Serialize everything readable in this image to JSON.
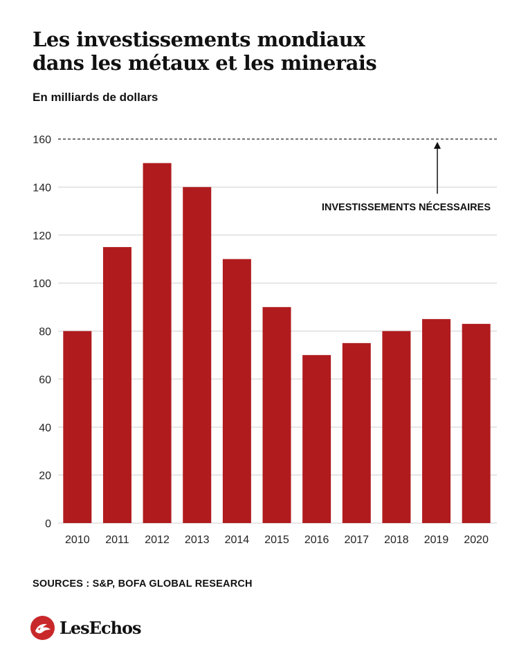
{
  "header": {
    "title_line1": "Les investissements mondiaux",
    "title_line2": "dans les métaux et les minerais",
    "subtitle": "En milliards de dollars"
  },
  "chart_data": {
    "type": "bar",
    "categories": [
      "2010",
      "2011",
      "2012",
      "2013",
      "2014",
      "2015",
      "2016",
      "2017",
      "2018",
      "2019",
      "2020"
    ],
    "values": [
      80,
      115,
      150,
      140,
      110,
      90,
      70,
      75,
      80,
      85,
      83
    ],
    "ylim": [
      0,
      160
    ],
    "yticks": [
      0,
      20,
      40,
      60,
      80,
      100,
      120,
      140,
      160
    ],
    "grid": true,
    "bar_color": "#b01b1e",
    "reference_line": {
      "value": 160,
      "style": "dashed",
      "label": "INVESTISSEMENTS NÉCESSAIRES"
    }
  },
  "footer": {
    "sources": "SOURCES : S&P, BOFA GLOBAL RESEARCH",
    "logo_text": "LesEchos",
    "logo_icon": "les-echos-logo-icon"
  },
  "colors": {
    "accent": "#c8282a",
    "bars": "#b01b1e",
    "grid": "#cfcfcf",
    "text": "#111111"
  }
}
